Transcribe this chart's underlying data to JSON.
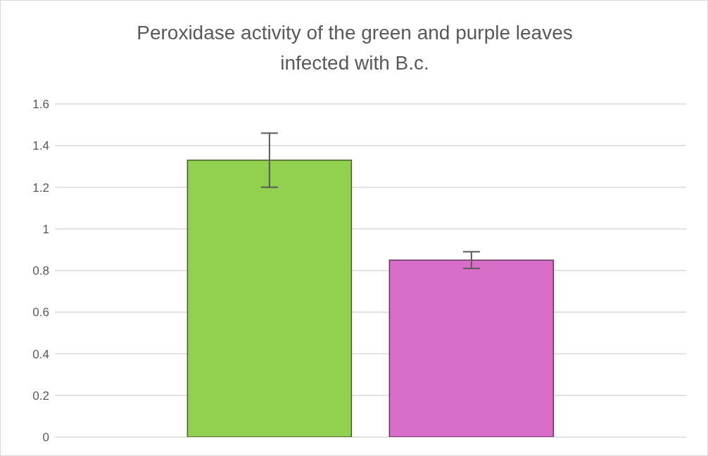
{
  "chart_data": {
    "type": "bar",
    "title": "Peroxidase activity of the green and purple leaves infected with B.c.",
    "categories": [
      null
    ],
    "series": [
      {
        "color": "#92d050",
        "values": [
          1.33
        ],
        "errors": [
          0.13
        ]
      },
      {
        "color": "#d86ec8",
        "values": [
          0.85
        ],
        "errors": [
          0.04
        ]
      }
    ],
    "ylim": [
      0,
      1.6
    ],
    "yticks": [
      0,
      0.2,
      0.4,
      0.6,
      0.8,
      1,
      1.2,
      1.4,
      1.6
    ],
    "grid": "y",
    "tick_labels": "y",
    "legend": false
  }
}
